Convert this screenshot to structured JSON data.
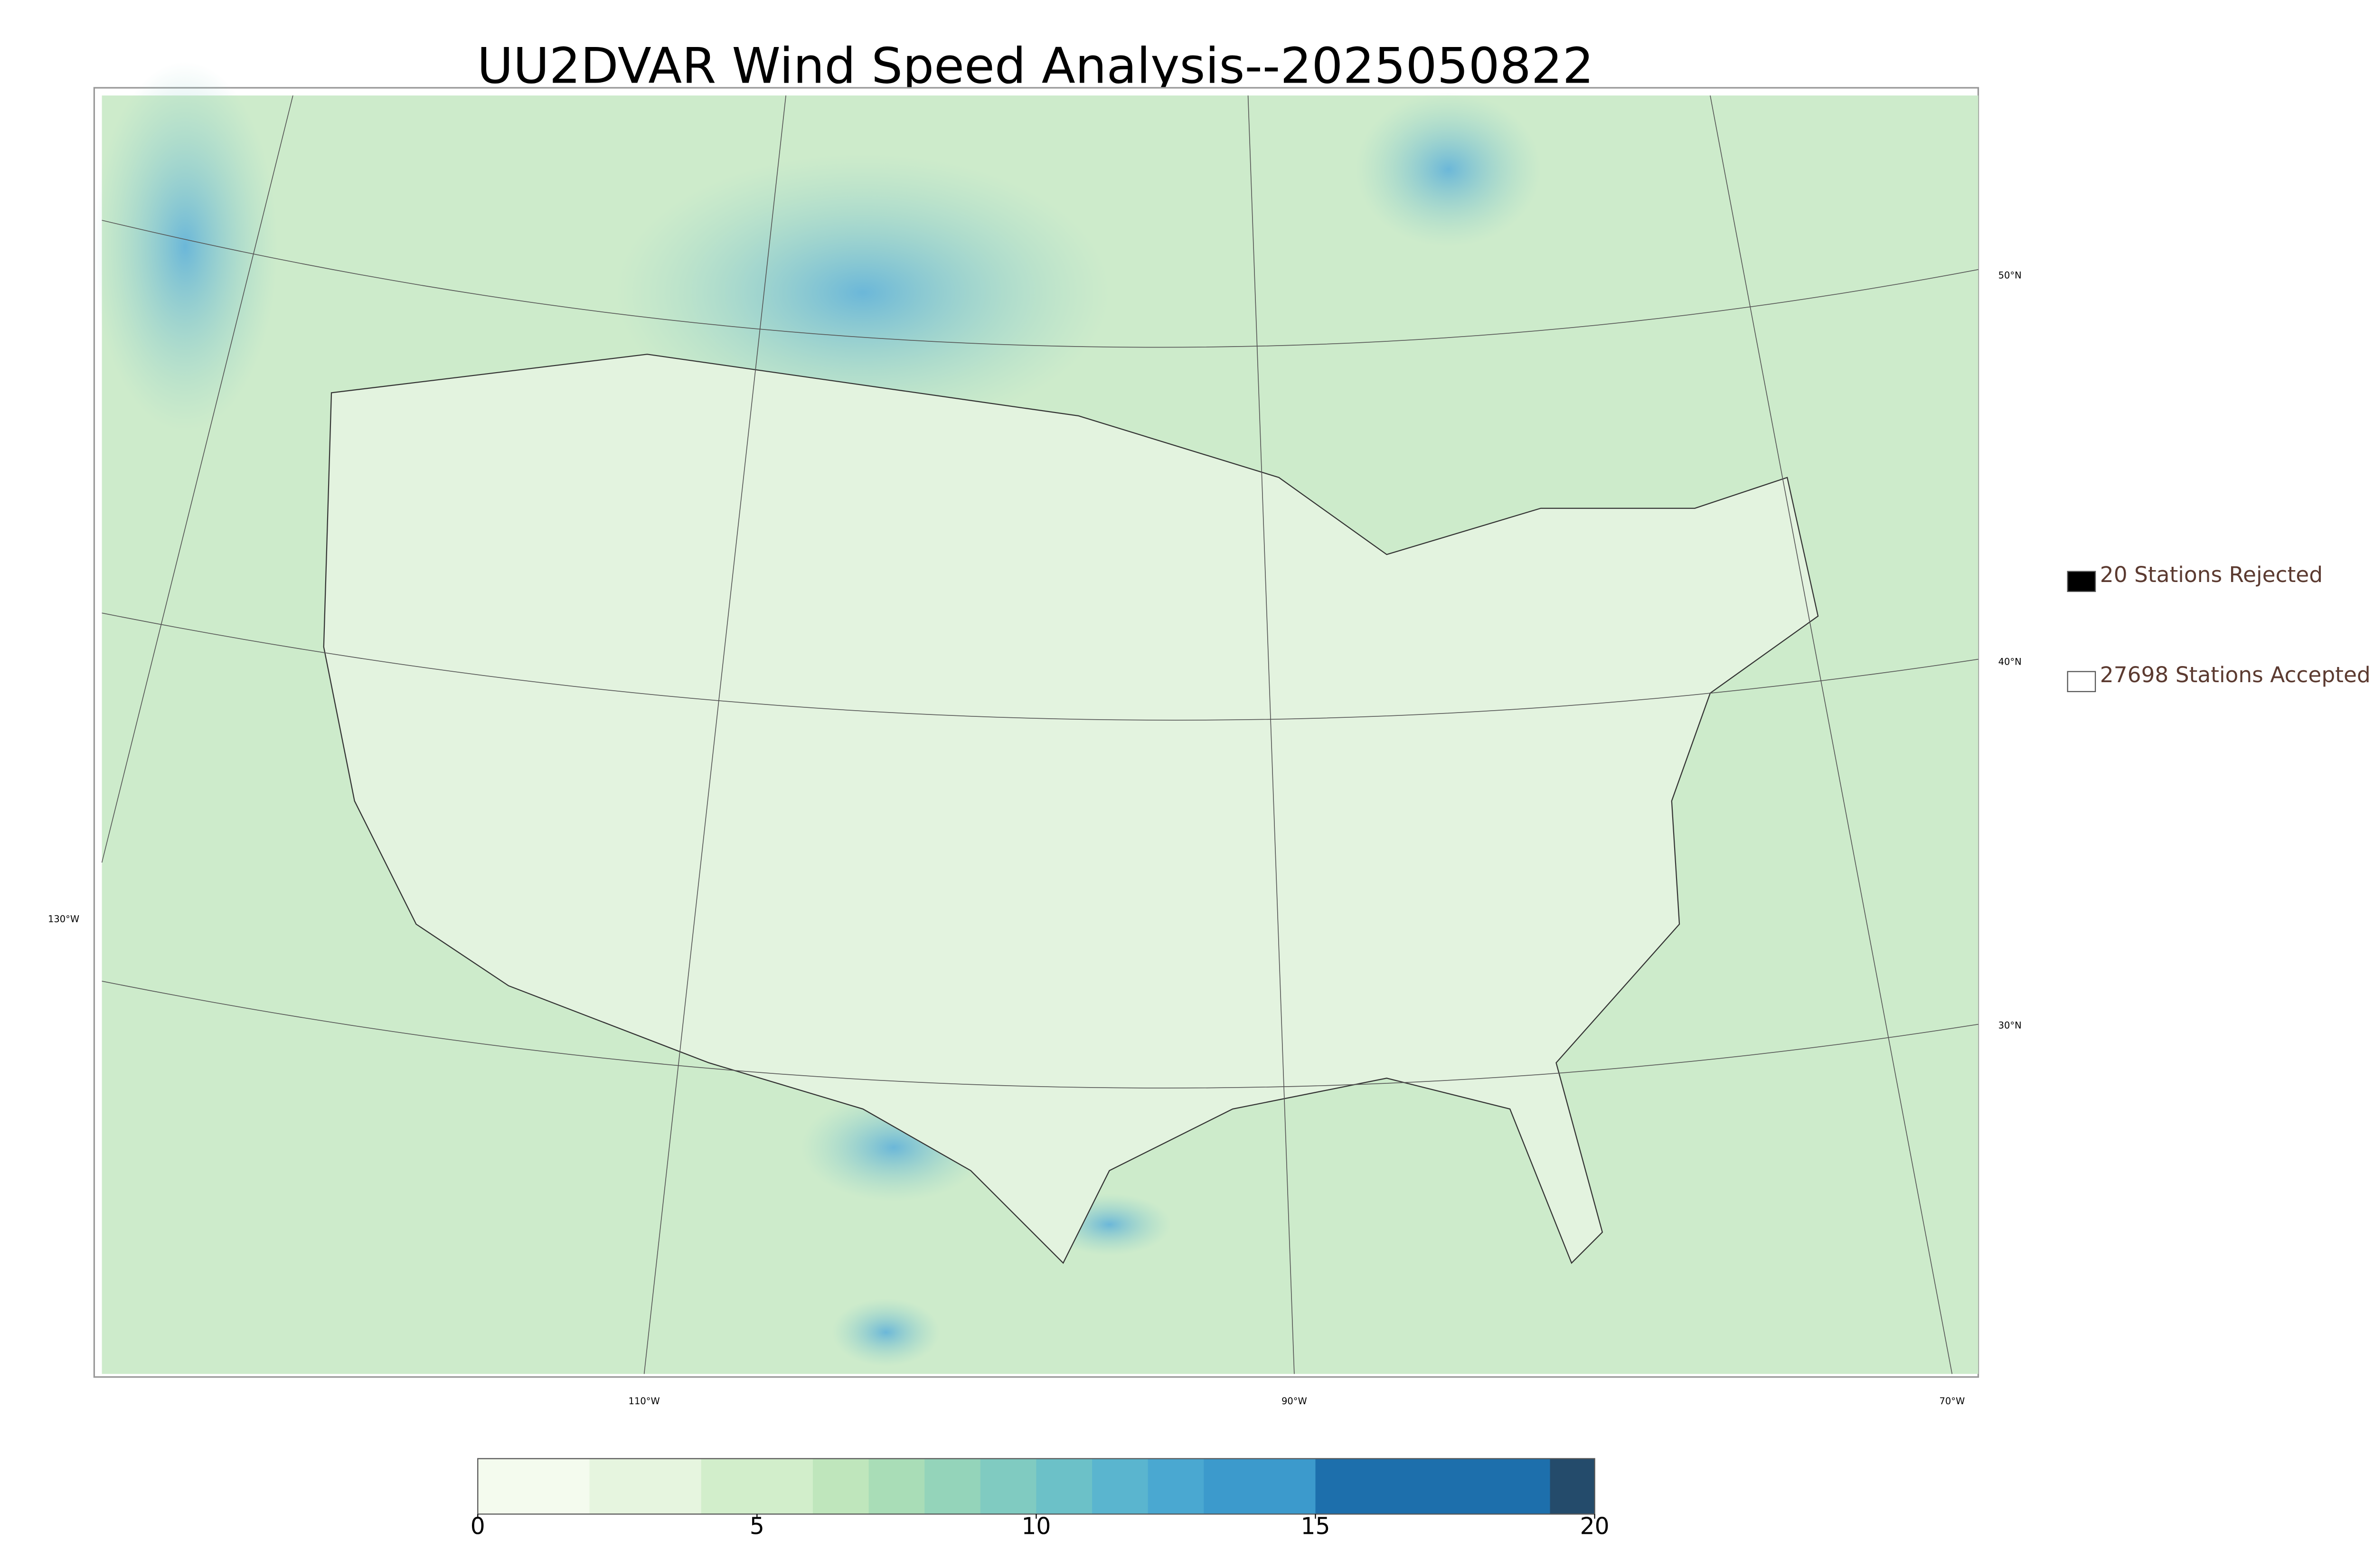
{
  "title": "UU2DVAR Wind Speed Analysis--2025050822",
  "graticule": {
    "lat_labels": [
      "50°N",
      "40°N",
      "30°N"
    ],
    "lon_labels": [
      "130°W",
      "110°W",
      "90°W",
      "70°W"
    ]
  },
  "legend": [
    {
      "label": "20 Stations Rejected",
      "color": "#000000"
    },
    {
      "label": "27698 Stations Accepted",
      "color": "#ffffff"
    }
  ],
  "colorbar": {
    "lim": [
      0,
      20
    ],
    "ticks": [
      0,
      5,
      10,
      15,
      20
    ],
    "levels": [
      0,
      2,
      4,
      6,
      7,
      8,
      9,
      10,
      11,
      12,
      13,
      15,
      19.2,
      20
    ],
    "colors": [
      "#f4fbee",
      "#e6f5df",
      "#d2eecb",
      "#bfe6bc",
      "#a9ddb7",
      "#94d4ba",
      "#80cbc1",
      "#6cc1c8",
      "#5ab5cf",
      "#4aa8d1",
      "#3c9acc",
      "#1d6fac",
      "#244b6b"
    ]
  }
}
